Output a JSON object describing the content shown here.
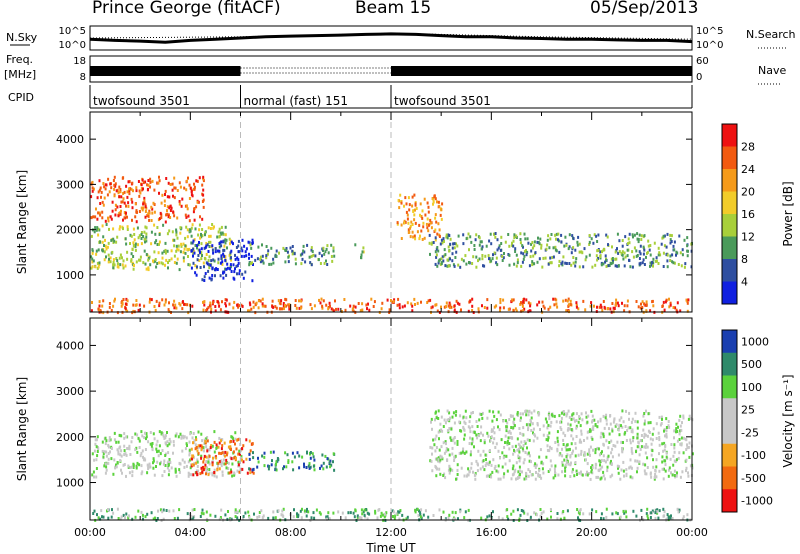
{
  "header": {
    "station": "Prince George (fitACF)",
    "beam": "Beam 15",
    "date": "05/Sep/2013"
  },
  "chart_data": [
    {
      "type": "line",
      "panel": "noise",
      "left_label": "N.Sky",
      "right_label": "N.Search",
      "left_ticks": [
        "10^5",
        "10^0"
      ],
      "right_ticks": [
        "10^5",
        "10^0"
      ],
      "series": [
        {
          "name": "N.Sky",
          "style": "solid",
          "x_hours": [
            0,
            1,
            2,
            3,
            4,
            5,
            6,
            7,
            8,
            9,
            10,
            11,
            12,
            13,
            14,
            15,
            16,
            17,
            18,
            19,
            20,
            21,
            22,
            23,
            24
          ],
          "y_frac": [
            0.55,
            0.6,
            0.63,
            0.68,
            0.6,
            0.55,
            0.5,
            0.45,
            0.42,
            0.4,
            0.38,
            0.35,
            0.33,
            0.35,
            0.4,
            0.45,
            0.45,
            0.5,
            0.52,
            0.55,
            0.55,
            0.58,
            0.6,
            0.6,
            0.65
          ]
        },
        {
          "name": "N.Search",
          "style": "dotted",
          "x_hours": [
            0,
            6,
            12,
            18,
            24
          ],
          "y_frac": [
            0.5,
            0.45,
            0.3,
            0.45,
            0.55
          ]
        }
      ]
    },
    {
      "type": "line",
      "panel": "frequency",
      "left_label": "Freq.",
      "left_unit": "[MHz]",
      "right_label": "Nave",
      "left_ticks": [
        "18",
        "8"
      ],
      "right_ticks": [
        "60",
        "0"
      ],
      "segments": [
        {
          "start_hour": 0,
          "end_hour": 6.0,
          "mode": "band"
        },
        {
          "start_hour": 6.0,
          "end_hour": 12.0,
          "mode": "dotted"
        },
        {
          "start_hour": 12.0,
          "end_hour": 24.0,
          "mode": "band"
        }
      ]
    },
    {
      "type": "table",
      "panel": "cpid",
      "label": "CPID",
      "entries": [
        {
          "name": "twofsound 3501",
          "start_hour": 0,
          "end_hour": 6.0
        },
        {
          "name": "normal (fast) 151",
          "start_hour": 6.0,
          "end_hour": 12.0
        },
        {
          "name": "twofsound 3501",
          "start_hour": 12.0,
          "end_hour": 24.0
        }
      ]
    },
    {
      "type": "heatmap",
      "panel": "power",
      "ylabel": "Slant Range [km]",
      "ylim": [
        180,
        4600
      ],
      "yticks": [
        1000,
        2000,
        3000,
        4000
      ],
      "xlim": [
        0,
        24
      ],
      "colorbar": {
        "title": "Power [dB]",
        "ticks": [
          "28",
          "24",
          "20",
          "16",
          "12",
          "8",
          "4"
        ],
        "colors": [
          "#ee1111",
          "#f25a10",
          "#f59a1a",
          "#f2cc2a",
          "#a8cf3a",
          "#4a9a5a",
          "#2f4fa0",
          "#1020e0"
        ]
      },
      "features": [
        {
          "start_hour": 0.0,
          "end_hour": 5.6,
          "range_km": [
            1150,
            2150
          ],
          "level": 4
        },
        {
          "start_hour": 4.0,
          "end_hour": 6.5,
          "range_km": [
            900,
            1800
          ],
          "level": 7
        },
        {
          "start_hour": 6.3,
          "end_hour": 9.7,
          "range_km": [
            1250,
            1700
          ],
          "level": 5
        },
        {
          "start_hour": 0.0,
          "end_hour": 4.5,
          "range_km": [
            2200,
            3200
          ],
          "level": 1
        },
        {
          "start_hour": 10.5,
          "end_hour": 10.9,
          "range_km": [
            1400,
            1700
          ],
          "level": 4
        },
        {
          "start_hour": 12.2,
          "end_hour": 14.0,
          "range_km": [
            1800,
            2800
          ],
          "level": 2
        },
        {
          "start_hour": 13.5,
          "end_hour": 24.0,
          "range_km": [
            1200,
            1950
          ],
          "level": 5
        },
        {
          "start_hour": 0.0,
          "end_hour": 24.0,
          "range_km": [
            200,
            500
          ],
          "level": 1
        }
      ]
    },
    {
      "type": "heatmap",
      "panel": "velocity",
      "ylabel": "Slant Range [km]",
      "ylim": [
        180,
        4600
      ],
      "yticks": [
        1000,
        2000,
        3000,
        4000
      ],
      "xlim": [
        0,
        24
      ],
      "xticks": [
        "00:00",
        "04:00",
        "08:00",
        "12:00",
        "16:00",
        "20:00",
        "00:00"
      ],
      "xlabel": "Time UT",
      "colorbar": {
        "title": "Velocity [m s⁻¹]",
        "ticks": [
          "1000",
          "500",
          "100",
          "25",
          "-25",
          "-100",
          "-500",
          "-1000"
        ],
        "colors": [
          "#1a3fb0",
          "#2f8a6a",
          "#5bd23c",
          "#c8c8c8",
          "#c8c8c8",
          "#f5a623",
          "#f26a10",
          "#ee1111"
        ]
      },
      "features": [
        {
          "start_hour": 0.0,
          "end_hour": 6.0,
          "range_km": [
            1150,
            2150
          ],
          "level": 3
        },
        {
          "start_hour": 4.0,
          "end_hour": 6.5,
          "range_km": [
            1200,
            2000
          ],
          "level": 6
        },
        {
          "start_hour": 6.3,
          "end_hour": 9.7,
          "range_km": [
            1300,
            1700
          ],
          "level": 1
        },
        {
          "start_hour": 13.5,
          "end_hour": 24.0,
          "range_km": [
            1100,
            2600
          ],
          "level": 3
        },
        {
          "start_hour": 0.0,
          "end_hour": 24.0,
          "range_km": [
            200,
            450
          ],
          "level": 2
        }
      ]
    }
  ]
}
